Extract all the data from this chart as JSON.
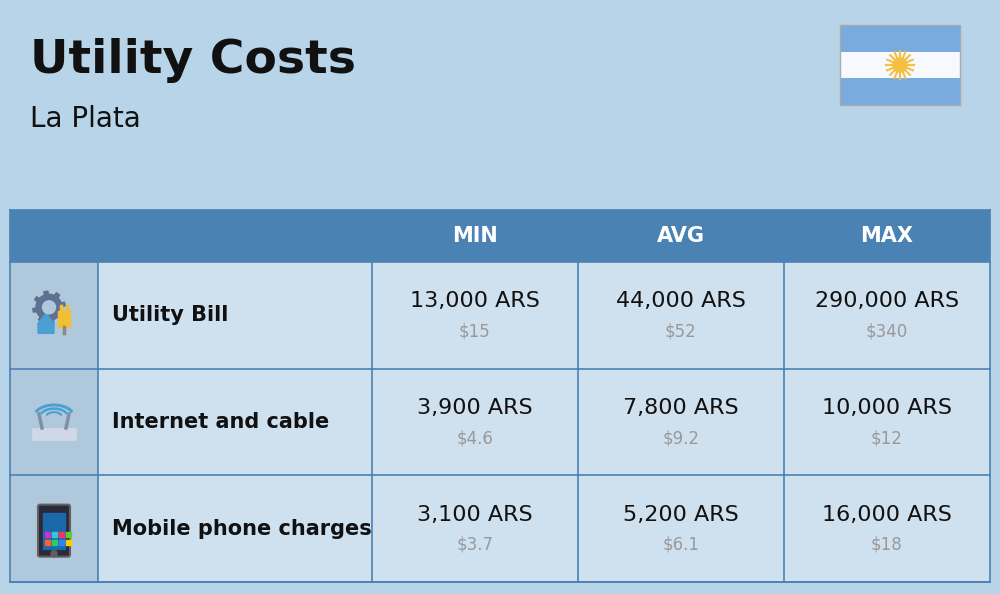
{
  "title": "Utility Costs",
  "subtitle": "La Plata",
  "background_color": "#b8d4e8",
  "header_bg_color": "#4a82b4",
  "header_text_color": "#ffffff",
  "row_bg_light": "#cfe0ee",
  "row_bg_dark": "#bcd0e0",
  "icon_col_bg": "#b0c8dc",
  "separator_color": "#4a82b4",
  "columns": [
    "MIN",
    "AVG",
    "MAX"
  ],
  "rows": [
    {
      "label": "Utility Bill",
      "min_ars": "13,000 ARS",
      "min_usd": "$15",
      "avg_ars": "44,000 ARS",
      "avg_usd": "$52",
      "max_ars": "290,000 ARS",
      "max_usd": "$340"
    },
    {
      "label": "Internet and cable",
      "min_ars": "3,900 ARS",
      "min_usd": "$4.6",
      "avg_ars": "7,800 ARS",
      "avg_usd": "$9.2",
      "max_ars": "10,000 ARS",
      "max_usd": "$12"
    },
    {
      "label": "Mobile phone charges",
      "min_ars": "3,100 ARS",
      "min_usd": "$3.7",
      "avg_ars": "5,200 ARS",
      "avg_usd": "$6.1",
      "max_ars": "16,000 ARS",
      "max_usd": "$18"
    }
  ],
  "ars_fontsize": 16,
  "usd_fontsize": 12,
  "label_fontsize": 15,
  "header_fontsize": 15,
  "title_fontsize": 34,
  "subtitle_fontsize": 20,
  "usd_color": "#999999",
  "text_color": "#111111",
  "flag_stripe_color": "#7aabdf",
  "flag_white": "#f8f8ff",
  "sun_color": "#f5c042"
}
